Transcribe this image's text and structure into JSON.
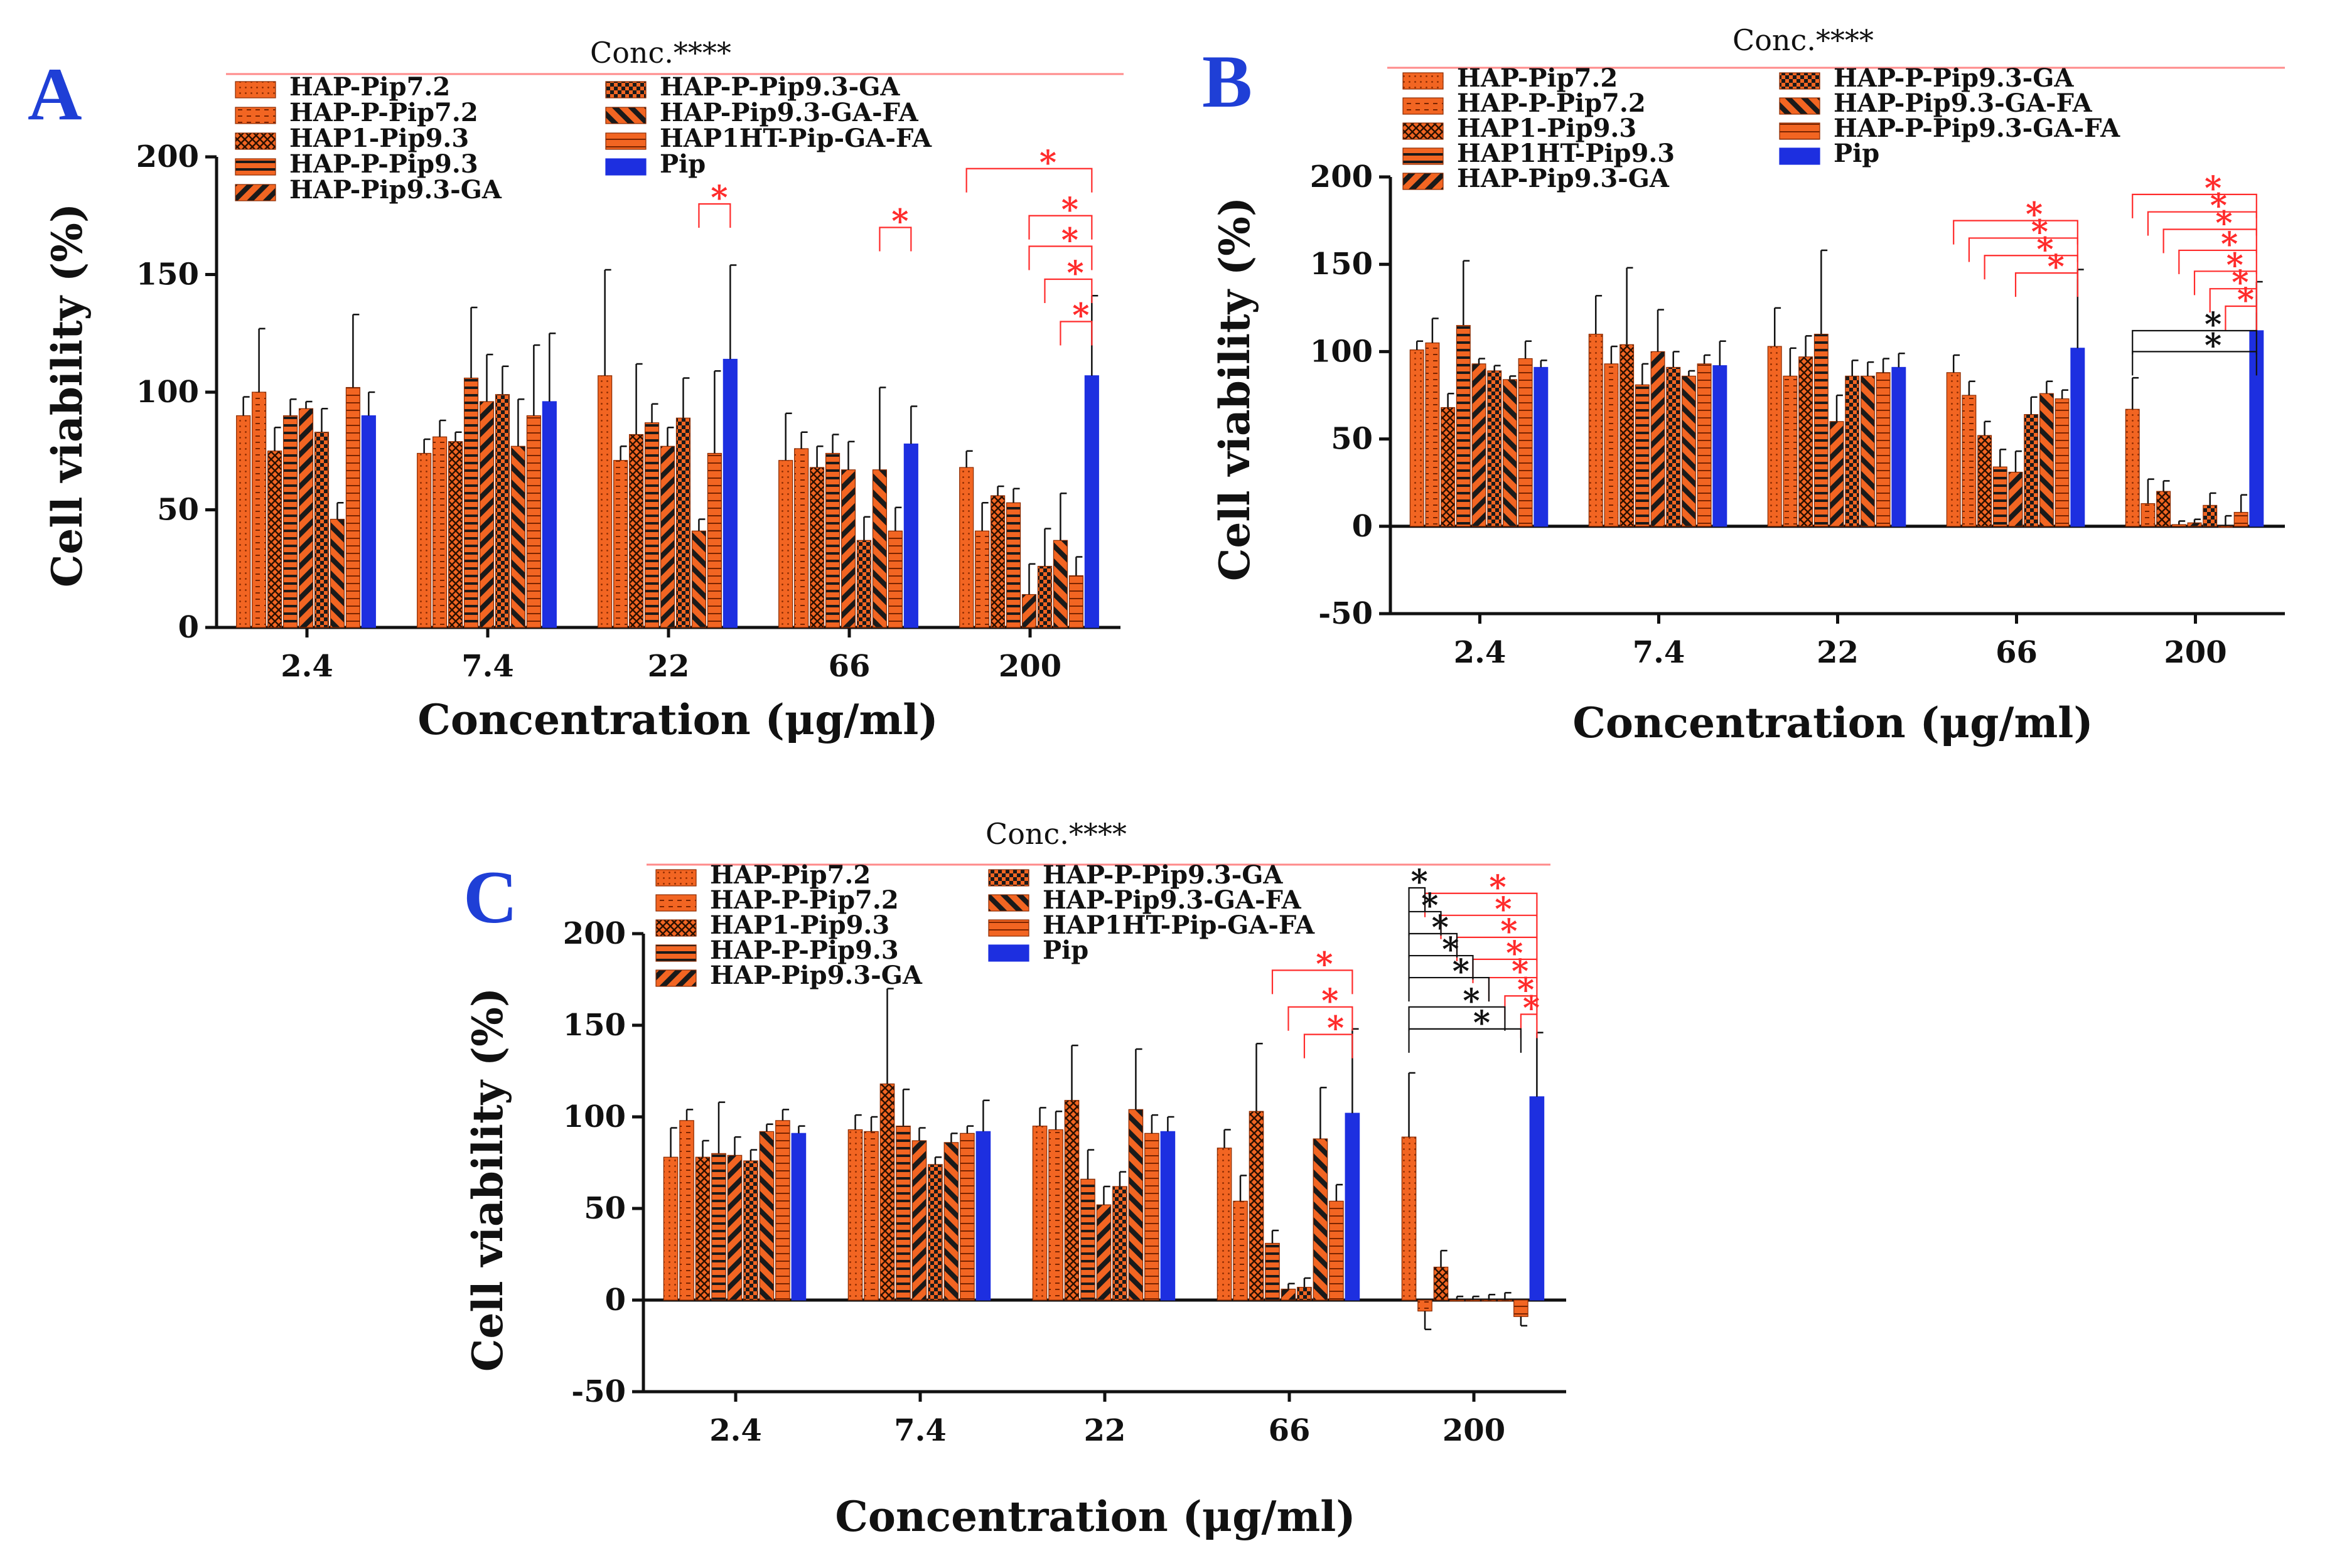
{
  "figure": {
    "series_colors": {
      "orange": "#f26522",
      "dark": "#1a1a1a",
      "blue": "#1d2fe0",
      "sig_red": "#ff2b2b",
      "sig_black": "#111111",
      "axis": "#111111"
    }
  },
  "chart_data": [
    {
      "panel": "A",
      "type": "bar",
      "title": "",
      "stat_label": "Conc.****",
      "xlabel": "Concentration (μg/ml)",
      "ylabel": "Cell viability (%)",
      "ylim": [
        0,
        200
      ],
      "yticks": [
        "0",
        "50",
        "100",
        "150",
        "200"
      ],
      "categories": [
        "2.4",
        "7.4",
        "22",
        "66",
        "200"
      ],
      "legend": [
        "HAP-Pip7.2",
        "HAP-P-Pip7.2",
        "HAP1-Pip9.3",
        "HAP-P-Pip9.3",
        "HAP-Pip9.3-GA",
        "HAP-P-Pip9.3-GA",
        "HAP-Pip9.3-GA-FA",
        "HAP1HT-Pip-GA-FA",
        "Pip"
      ],
      "series": [
        {
          "name": "HAP-Pip7.2",
          "values": [
            90,
            74,
            107,
            71,
            68
          ],
          "errors": [
            8,
            6,
            45,
            20,
            7
          ]
        },
        {
          "name": "HAP-P-Pip7.2",
          "values": [
            100,
            81,
            71,
            76,
            41
          ],
          "errors": [
            27,
            7,
            6,
            7,
            12
          ]
        },
        {
          "name": "HAP1-Pip9.3",
          "values": [
            75,
            79,
            82,
            68,
            56
          ],
          "errors": [
            10,
            4,
            30,
            9,
            4
          ]
        },
        {
          "name": "HAP-P-Pip9.3",
          "values": [
            90,
            106,
            87,
            74,
            53
          ],
          "errors": [
            7,
            30,
            8,
            8,
            6
          ]
        },
        {
          "name": "HAP-Pip9.3-GA",
          "values": [
            93,
            96,
            77,
            67,
            14
          ],
          "errors": [
            3,
            20,
            8,
            12,
            13
          ]
        },
        {
          "name": "HAP-P-Pip9.3-GA",
          "values": [
            83,
            99,
            89,
            37,
            26
          ],
          "errors": [
            10,
            12,
            17,
            10,
            16
          ]
        },
        {
          "name": "HAP-Pip9.3-GA-FA",
          "values": [
            46,
            77,
            41,
            67,
            37
          ],
          "errors": [
            7,
            20,
            5,
            35,
            20
          ]
        },
        {
          "name": "HAP1HT-Pip-GA-FA",
          "values": [
            102,
            90,
            74,
            41,
            22
          ],
          "errors": [
            31,
            30,
            35,
            10,
            8
          ]
        },
        {
          "name": "Pip",
          "values": [
            90,
            96,
            114,
            78,
            107
          ],
          "errors": [
            10,
            29,
            40,
            16,
            34
          ]
        }
      ],
      "significance_labels": [
        "*",
        "*",
        "*",
        "*",
        "*",
        "*",
        "*"
      ]
    },
    {
      "panel": "B",
      "type": "bar",
      "title": "",
      "stat_label": "Conc.****",
      "xlabel": "Concentration (μg/ml)",
      "ylabel": "Cell viability (%)",
      "ylim": [
        -50,
        200
      ],
      "yticks": [
        "-50",
        "0",
        "50",
        "100",
        "150",
        "200"
      ],
      "categories": [
        "2.4",
        "7.4",
        "22",
        "66",
        "200"
      ],
      "legend": [
        "HAP-Pip7.2",
        "HAP-P-Pip7.2",
        "HAP1-Pip9.3",
        "HAP1HT-Pip9.3",
        "HAP-Pip9.3-GA",
        "HAP-P-Pip9.3-GA",
        "HAP-Pip9.3-GA-FA",
        "HAP-P-Pip9.3-GA-FA",
        "Pip"
      ],
      "series": [
        {
          "name": "HAP-Pip7.2",
          "values": [
            101,
            110,
            103,
            88,
            67
          ],
          "errors": [
            5,
            22,
            22,
            10,
            18
          ]
        },
        {
          "name": "HAP-P-Pip7.2",
          "values": [
            105,
            93,
            86,
            75,
            13
          ],
          "errors": [
            14,
            10,
            16,
            8,
            14
          ]
        },
        {
          "name": "HAP1-Pip9.3",
          "values": [
            68,
            104,
            97,
            52,
            20
          ],
          "errors": [
            8,
            44,
            12,
            8,
            6
          ]
        },
        {
          "name": "HAP1HT-Pip9.3",
          "values": [
            115,
            81,
            110,
            34,
            1
          ],
          "errors": [
            37,
            12,
            48,
            10,
            2
          ]
        },
        {
          "name": "HAP-Pip9.3-GA",
          "values": [
            93,
            100,
            60,
            31,
            2
          ],
          "errors": [
            3,
            24,
            15,
            12,
            2
          ]
        },
        {
          "name": "HAP-P-Pip9.3-GA",
          "values": [
            89,
            91,
            86,
            64,
            12
          ],
          "errors": [
            3,
            9,
            9,
            10,
            7
          ]
        },
        {
          "name": "HAP-Pip9.3-GA-FA",
          "values": [
            84,
            86,
            86,
            76,
            0
          ],
          "errors": [
            2,
            3,
            8,
            7,
            6
          ]
        },
        {
          "name": "HAP-P-Pip9.3-GA-FA",
          "values": [
            96,
            93,
            88,
            73,
            8
          ],
          "errors": [
            10,
            5,
            8,
            5,
            10
          ]
        },
        {
          "name": "Pip",
          "values": [
            91,
            92,
            91,
            102,
            112
          ],
          "errors": [
            4,
            14,
            8,
            45,
            28
          ]
        }
      ],
      "significance_labels": [
        "*",
        "*",
        "*",
        "*",
        "*",
        "*",
        "*",
        "*",
        "*",
        "*",
        "*",
        "*",
        "*"
      ]
    },
    {
      "panel": "C",
      "type": "bar",
      "title": "",
      "stat_label": "Conc.****",
      "xlabel": "Concentration (μg/ml)",
      "ylabel": "Cell viability (%)",
      "ylim": [
        -50,
        200
      ],
      "yticks": [
        "-50",
        "0",
        "50",
        "100",
        "150",
        "200"
      ],
      "categories": [
        "2.4",
        "7.4",
        "22",
        "66",
        "200"
      ],
      "legend": [
        "HAP-Pip7.2",
        "HAP-P-Pip7.2",
        "HAP1-Pip9.3",
        "HAP-P-Pip9.3",
        "HAP-Pip9.3-GA",
        "HAP-P-Pip9.3-GA",
        "HAP-Pip9.3-GA-FA",
        "HAP1HT-Pip-GA-FA",
        "Pip"
      ],
      "series": [
        {
          "name": "HAP-Pip7.2",
          "values": [
            78,
            93,
            95,
            83,
            89
          ],
          "errors": [
            16,
            8,
            10,
            10,
            35
          ]
        },
        {
          "name": "HAP-P-Pip7.2",
          "values": [
            98,
            92,
            93,
            54,
            -6
          ],
          "errors": [
            6,
            8,
            10,
            14,
            10
          ]
        },
        {
          "name": "HAP1-Pip9.3",
          "values": [
            78,
            118,
            109,
            103,
            18
          ],
          "errors": [
            9,
            52,
            30,
            37,
            9
          ]
        },
        {
          "name": "HAP-P-Pip9.3",
          "values": [
            80,
            95,
            66,
            31,
            0
          ],
          "errors": [
            28,
            20,
            16,
            7,
            2
          ]
        },
        {
          "name": "HAP-Pip9.3-GA",
          "values": [
            79,
            87,
            52,
            6,
            0
          ],
          "errors": [
            10,
            7,
            10,
            3,
            2
          ]
        },
        {
          "name": "HAP-P-Pip9.3-GA",
          "values": [
            76,
            74,
            62,
            7,
            0
          ],
          "errors": [
            6,
            4,
            8,
            5,
            3
          ]
        },
        {
          "name": "HAP-Pip9.3-GA-FA",
          "values": [
            92,
            86,
            104,
            88,
            0
          ],
          "errors": [
            4,
            5,
            33,
            28,
            4
          ]
        },
        {
          "name": "HAP1HT-Pip-GA-FA",
          "values": [
            98,
            91,
            91,
            54,
            -9
          ],
          "errors": [
            6,
            4,
            10,
            9,
            5
          ]
        },
        {
          "name": "Pip",
          "values": [
            91,
            92,
            92,
            102,
            111
          ],
          "errors": [
            4,
            17,
            8,
            46,
            35
          ]
        }
      ],
      "significance_labels": [
        "*",
        "*",
        "*",
        "*",
        "*",
        "*",
        "*",
        "*",
        "*",
        "*",
        "*",
        "*",
        "*",
        "*",
        "*",
        "*",
        "*"
      ]
    }
  ]
}
